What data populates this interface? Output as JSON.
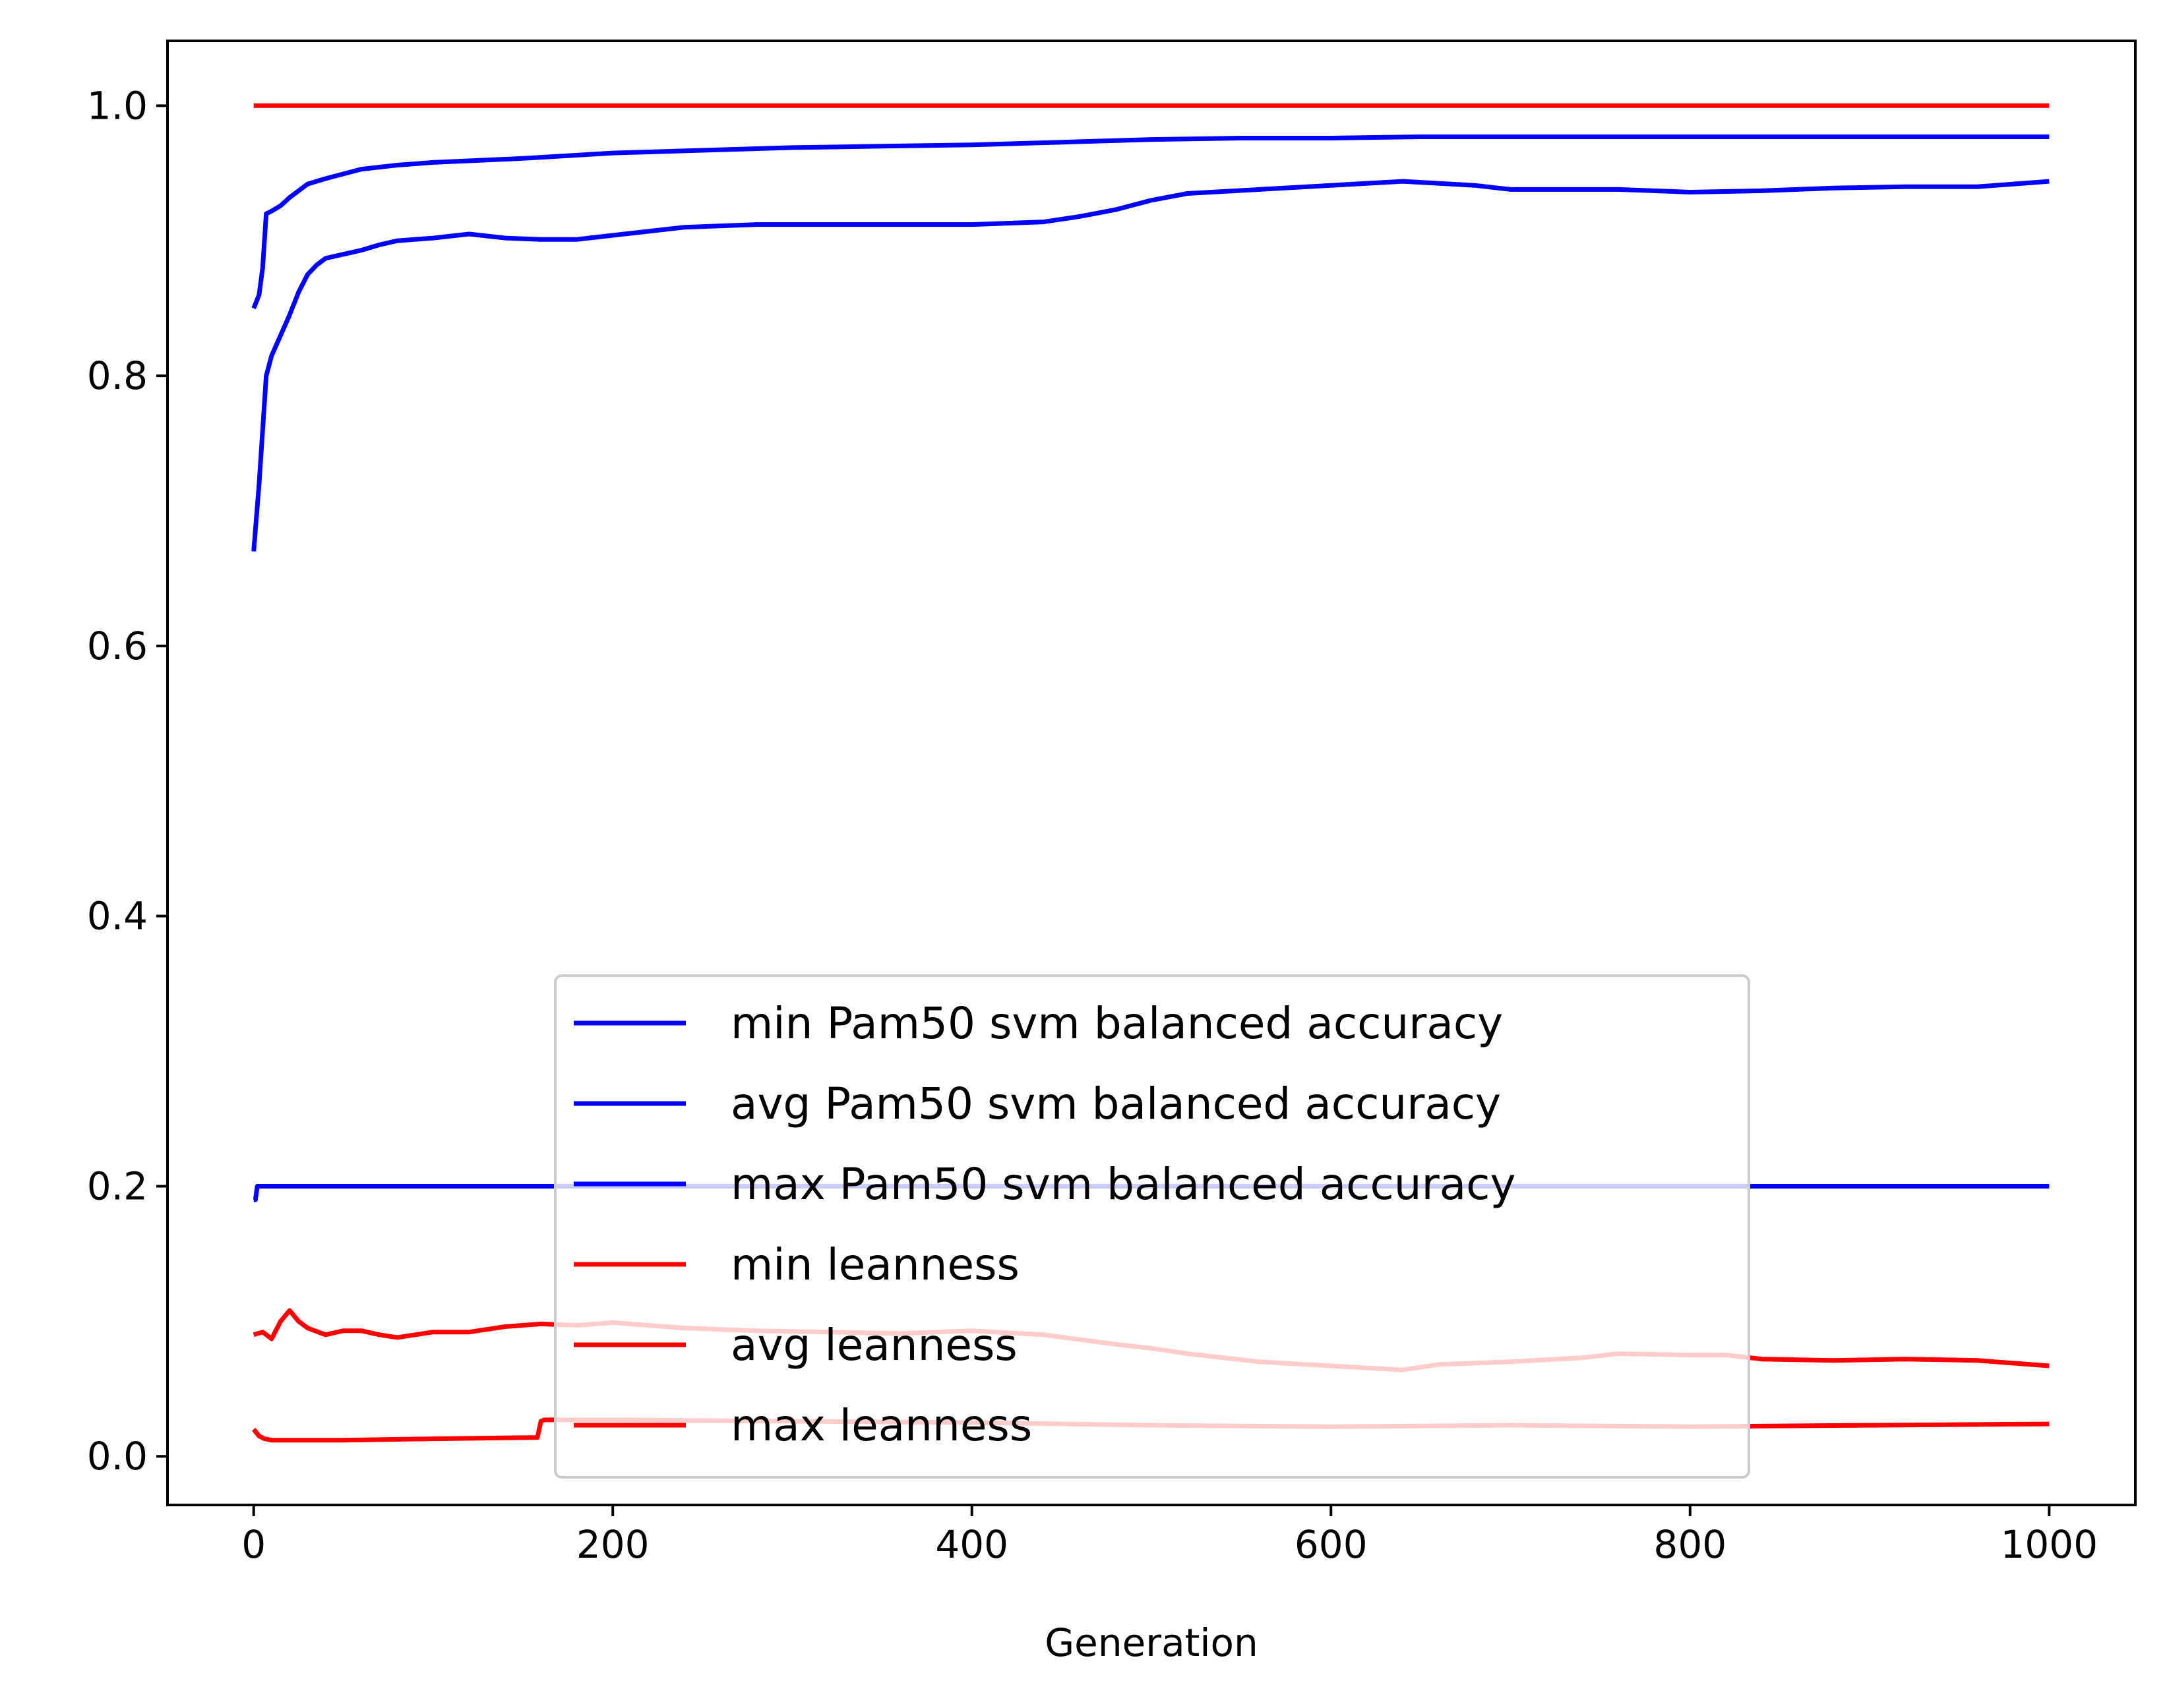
{
  "chart_data": {
    "type": "line",
    "title": "",
    "xlabel": "Generation",
    "ylabel": "",
    "xlim": [
      -48,
      1048
    ],
    "ylim": [
      -0.036,
      1.048
    ],
    "xticks": [
      0,
      200,
      400,
      600,
      800,
      1000
    ],
    "xtick_labels": [
      "0",
      "200",
      "400",
      "600",
      "800",
      "1000"
    ],
    "yticks": [
      0.0,
      0.2,
      0.4,
      0.6,
      0.8,
      1.0
    ],
    "ytick_labels": [
      "0.0",
      "0.2",
      "0.4",
      "0.6",
      "0.8",
      "1.0"
    ],
    "grid": false,
    "legend_position": "lower center",
    "series": [
      {
        "name": "min Pam50 svm balanced accuracy",
        "color": "#0000ff",
        "x": [
          0,
          1,
          2,
          3,
          1000
        ],
        "y": [
          0.19,
          0.19,
          0.2,
          0.2,
          0.2
        ]
      },
      {
        "name": "avg Pam50 svm balanced accuracy",
        "color": "#0000ff",
        "x": [
          0,
          3,
          5,
          7,
          10,
          15,
          20,
          25,
          30,
          35,
          40,
          50,
          60,
          70,
          80,
          100,
          120,
          140,
          160,
          180,
          200,
          240,
          280,
          320,
          360,
          400,
          440,
          460,
          480,
          500,
          520,
          560,
          600,
          640,
          680,
          700,
          720,
          760,
          800,
          840,
          880,
          920,
          960,
          1000
        ],
        "y": [
          0.67,
          0.72,
          0.76,
          0.8,
          0.815,
          0.83,
          0.845,
          0.862,
          0.875,
          0.882,
          0.887,
          0.89,
          0.893,
          0.897,
          0.9,
          0.902,
          0.905,
          0.902,
          0.901,
          0.901,
          0.904,
          0.91,
          0.912,
          0.912,
          0.912,
          0.912,
          0.914,
          0.918,
          0.923,
          0.93,
          0.935,
          0.938,
          0.941,
          0.944,
          0.941,
          0.938,
          0.938,
          0.938,
          0.936,
          0.937,
          0.939,
          0.94,
          0.94,
          0.944
        ]
      },
      {
        "name": "max Pam50 svm balanced accuracy",
        "color": "#0000ff",
        "x": [
          0,
          3,
          5,
          7,
          10,
          15,
          20,
          30,
          40,
          60,
          80,
          100,
          150,
          200,
          250,
          300,
          350,
          400,
          450,
          500,
          550,
          600,
          650,
          700,
          800,
          900,
          1000
        ],
        "y": [
          0.85,
          0.86,
          0.88,
          0.92,
          0.922,
          0.926,
          0.932,
          0.942,
          0.946,
          0.953,
          0.956,
          0.958,
          0.961,
          0.965,
          0.967,
          0.969,
          0.97,
          0.971,
          0.973,
          0.975,
          0.976,
          0.976,
          0.977,
          0.977,
          0.977,
          0.977,
          0.977
        ]
      },
      {
        "name": "min leanness",
        "color": "#ff0000",
        "x": [
          0,
          1000
        ],
        "y": [
          1.0,
          1.0
        ]
      },
      {
        "name": "avg leanness",
        "color": "#ff0000",
        "x": [
          0,
          5,
          10,
          15,
          20,
          25,
          30,
          40,
          50,
          60,
          70,
          80,
          90,
          100,
          120,
          140,
          160,
          180,
          200,
          240,
          280,
          320,
          360,
          400,
          440,
          480,
          500,
          520,
          540,
          560,
          600,
          640,
          660,
          700,
          740,
          760,
          800,
          820,
          840,
          880,
          920,
          960,
          1000
        ],
        "y": [
          0.09,
          0.092,
          0.087,
          0.1,
          0.108,
          0.1,
          0.095,
          0.09,
          0.093,
          0.093,
          0.09,
          0.088,
          0.09,
          0.092,
          0.092,
          0.096,
          0.098,
          0.097,
          0.099,
          0.095,
          0.093,
          0.092,
          0.091,
          0.093,
          0.09,
          0.083,
          0.08,
          0.076,
          0.073,
          0.07,
          0.067,
          0.064,
          0.068,
          0.07,
          0.073,
          0.076,
          0.075,
          0.075,
          0.072,
          0.071,
          0.072,
          0.071,
          0.067
        ]
      },
      {
        "name": "max leanness",
        "color": "#ff0000",
        "x": [
          0,
          3,
          6,
          10,
          20,
          50,
          100,
          158,
          160,
          162,
          200,
          300,
          400,
          500,
          600,
          700,
          800,
          900,
          1000
        ],
        "y": [
          0.02,
          0.015,
          0.013,
          0.012,
          0.012,
          0.012,
          0.013,
          0.014,
          0.026,
          0.027,
          0.027,
          0.026,
          0.025,
          0.023,
          0.022,
          0.023,
          0.022,
          0.023,
          0.024
        ]
      }
    ]
  }
}
